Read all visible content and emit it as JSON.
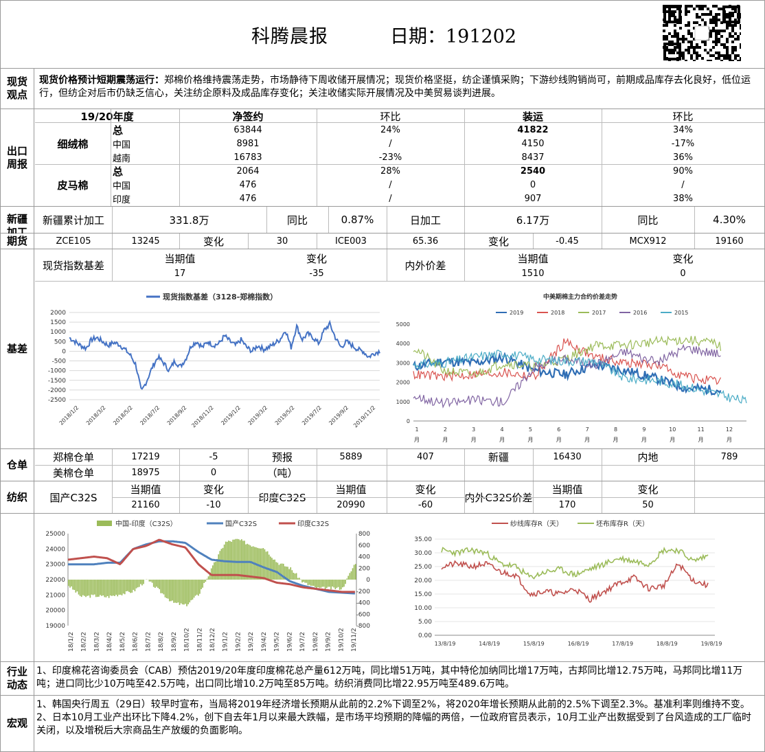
{
  "header": {
    "title": "科腾晨报",
    "date": "日期：191202"
  },
  "view": {
    "label": "现货\n观点",
    "bold": "现货价格预计短期震荡运行：",
    "text": "郑棉价格维持震荡走势，市场静待下周收储开展情况；现货价格坚挺，纺企谨慎采购；下游纱线购销尚可，前期成品库存去化良好，低位运行，但纺企对后市仍缺乏信心，关注纺企原料及成品库存变化；关注收储实际开展情况及中美贸易谈判进展。"
  },
  "export": {
    "label": "出口\n周报",
    "headers": [
      "19/20年度",
      "净签约",
      "环比",
      "装运",
      "环比"
    ],
    "groups": [
      {
        "name": "细绒棉",
        "rows": [
          [
            "总",
            "63844",
            "24%",
            "41822",
            "34%"
          ],
          [
            "中国",
            "8981",
            "/",
            "4150",
            "-17%"
          ],
          [
            "越南",
            "16783",
            "-23%",
            "8437",
            "36%"
          ]
        ]
      },
      {
        "name": "皮马棉",
        "rows": [
          [
            "总",
            "2064",
            "28%",
            "2540",
            "90%"
          ],
          [
            "中国",
            "476",
            "/",
            "0",
            "/"
          ],
          [
            "印度",
            "476",
            "/",
            "907",
            "38%"
          ]
        ]
      }
    ]
  },
  "xinjiang": {
    "label": "新疆\n加工",
    "cells": [
      "新疆累计加工",
      "331.8万",
      "同比",
      "0.87%",
      "日加工",
      "6.17万",
      "同比",
      "4.30%"
    ]
  },
  "futures": {
    "label": "期货",
    "cells": [
      "ZCE105",
      "13245",
      "变化",
      "30",
      "ICE003",
      "65.36",
      "变化",
      "-0.45",
      "MCX912",
      "19160"
    ]
  },
  "basis": {
    "label": "基差",
    "table": {
      "spot_label": "现货指数基差",
      "cur": "当期值",
      "chg": "变化",
      "spot_cur": "17",
      "spot_chg": "-35",
      "diff_label": "内外价差",
      "diff_cur": "1510",
      "diff_chg": "0"
    }
  },
  "warehouse": {
    "label": "仓单",
    "row1": [
      "郑棉仓单",
      "17219",
      "-5",
      "预报",
      "5889",
      "407",
      "新疆",
      "16430",
      "内地",
      "789"
    ],
    "row2": [
      "美棉仓单",
      "18975",
      "0",
      "（吨）"
    ]
  },
  "textile": {
    "label": "纺织",
    "cells": [
      "国产C32S",
      "当期值",
      "变化",
      "印度C32S",
      "当期值",
      "变化",
      "内外C32S价差",
      "当期值",
      "变化"
    ],
    "vals": [
      "21160",
      "-10",
      "20990",
      "-60",
      "170",
      "50"
    ]
  },
  "industry": {
    "label": "行业\n动态",
    "text": "1、印度棉花咨询委员会（CAB）预估2019/20年度印度棉花总产量612万吨，同比增51万吨，其中特伦加纳同比增17万吨，古邦同比增12.75万吨，马邦同比增11万吨；进口同比少10万吨至42.5万吨，出口同比增10.2万吨至85万吨。纺织消费同比增22.95万吨至489.6万吨。"
  },
  "macro": {
    "label": "宏观",
    "p1": "1、韩国央行周五（29日）较早时宣布，当局将2019年经济增长预期从此前的2.2%下调至2%，将2020年增长预期从此前的2.5%下调至2.3%。基准利率则维持不变。",
    "p2": "2、日本10月工业产出环比下降4.2%，创下自去年1月以来最大跌幅，是市场平均预期的降幅的两倍，一位政府官员表示，10月工业产出数据受到了台风造成的工厂临时关闭，以及增税后大宗商品生产放缓的负面影响。"
  },
  "chart_data": [
    {
      "type": "line",
      "title": "",
      "series": [
        {
          "name": "现货指数基差（3128-郑棉指数）",
          "color": "#4472C4"
        }
      ],
      "ylim": [
        -2500,
        2000
      ],
      "yticks": [
        2000,
        1500,
        1000,
        500,
        0,
        -500,
        -1000,
        -1500,
        -2000,
        -2500
      ],
      "xticks": [
        "2018/1/2",
        "2018/3/2",
        "2018/5/2",
        "2018/7/2",
        "2018/9/2",
        "2018/11/2",
        "2019/1/2",
        "2019/3/2",
        "2019/5/2",
        "2019/7/2",
        "2019/9/2",
        "2019/11/2"
      ],
      "values": [
        700,
        500,
        300,
        150,
        600,
        700,
        500,
        300,
        450,
        350,
        100,
        -200,
        -700,
        -2100,
        -1500,
        -800,
        -300,
        -600,
        -1000,
        -500,
        -800,
        -400,
        300,
        500,
        200,
        500,
        300,
        400,
        800,
        500,
        300,
        600,
        200,
        0,
        300,
        100,
        200,
        400,
        600,
        1100,
        200,
        1300,
        600,
        900,
        700,
        400,
        1100,
        1400,
        700,
        200,
        500,
        300,
        100,
        0,
        -300,
        -100,
        0
      ]
    },
    {
      "type": "line",
      "title": "中美期棉主力合约价差走势",
      "series": [
        {
          "name": "2019",
          "color": "#2E6DB4"
        },
        {
          "name": "2018",
          "color": "#D9534F"
        },
        {
          "name": "2017",
          "color": "#9BBB59"
        },
        {
          "name": "2016",
          "color": "#8064A2"
        },
        {
          "name": "2015",
          "color": "#4BACC6"
        }
      ],
      "ylim": [
        0,
        5000
      ],
      "yticks": [
        5000,
        4000,
        3000,
        2000,
        1000,
        0
      ],
      "xticks": [
        "1月",
        "2月",
        "3月",
        "4月",
        "5月",
        "6月",
        "7月",
        "8月",
        "9月",
        "10月",
        "11月",
        "12月"
      ]
    },
    {
      "type": "bar+line",
      "title": "",
      "series": [
        {
          "name": "中国-印度（C32S）",
          "color": "#9BBB59",
          "axis": "right"
        },
        {
          "name": "国产C32S",
          "color": "#4F81BD",
          "axis": "left"
        },
        {
          "name": "印度C32S",
          "color": "#C0504D",
          "axis": "left"
        }
      ],
      "ylim_left": [
        19000,
        25000
      ],
      "ylim_right": [
        -800,
        800
      ],
      "yticks_left": [
        25000,
        24000,
        23000,
        22000,
        21000,
        20000,
        19000
      ],
      "yticks_right": [
        800,
        600,
        400,
        200,
        0,
        -200,
        -400,
        -600,
        -800
      ],
      "xticks": [
        "18/1/2",
        "18/2/2",
        "18/3/2",
        "18/4/2",
        "18/5/2",
        "18/6/2",
        "18/7/2",
        "18/8/2",
        "18/9/2",
        "18/10/2",
        "18/11/2",
        "18/12/2",
        "19/1/2",
        "19/2/2",
        "19/3/2",
        "19/4/2",
        "19/5/2",
        "19/6/2",
        "19/7/2",
        "19/8/2",
        "19/9/2",
        "19/10/2",
        "19/11/2"
      ]
    },
    {
      "type": "line",
      "title": "",
      "series": [
        {
          "name": "纱线库存R（天）",
          "color": "#C0504D"
        },
        {
          "name": "坯布库存R（天）",
          "color": "#9BBB59"
        }
      ],
      "ylim": [
        0,
        35
      ],
      "yticks": [
        "35.00",
        "30.00",
        "25.00",
        "20.00",
        "15.00",
        "10.00",
        "5.00",
        "0.00"
      ],
      "xticks": [
        "13/8/19",
        "14/8/19",
        "15/8/19",
        "16/8/19",
        "17/8/19",
        "18/8/19",
        "19/8/19"
      ]
    }
  ]
}
